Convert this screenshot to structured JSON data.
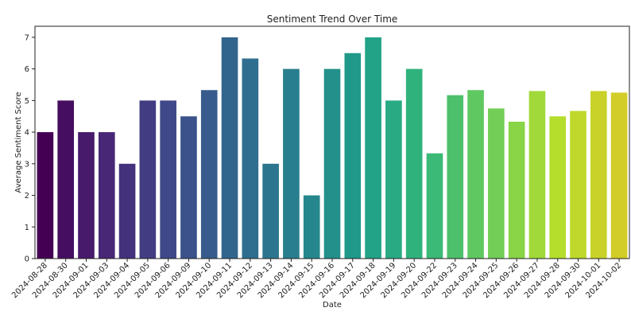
{
  "chart_data": {
    "type": "bar",
    "title": "Sentiment Trend Over Time",
    "xlabel": "Date",
    "ylabel": "Average Sentiment Score",
    "ylim": [
      0,
      7.35
    ],
    "yticks": [
      "0",
      "1",
      "2",
      "3",
      "4",
      "5",
      "6",
      "7"
    ],
    "grid": false,
    "palette": "viridis",
    "categories": [
      "2024-08-28",
      "2024-08-30",
      "2024-09-01",
      "2024-09-03",
      "2024-09-04",
      "2024-09-05",
      "2024-09-06",
      "2024-09-09",
      "2024-09-10",
      "2024-09-11",
      "2024-09-12",
      "2024-09-13",
      "2024-09-14",
      "2024-09-15",
      "2024-09-16",
      "2024-09-17",
      "2024-09-18",
      "2024-09-19",
      "2024-09-20",
      "2024-09-22",
      "2024-09-23",
      "2024-09-24",
      "2024-09-25",
      "2024-09-26",
      "2024-09-27",
      "2024-09-28",
      "2024-09-30",
      "2024-10-01",
      "2024-10-02"
    ],
    "values": [
      4,
      5,
      4,
      4,
      3,
      5,
      5,
      4.5,
      5.33,
      7,
      6.33,
      3,
      6,
      2,
      6,
      6.5,
      7,
      5,
      6,
      3.33,
      5.17,
      5.33,
      4.75,
      4.33,
      5.3,
      4.5,
      4.67,
      5.3,
      5.25
    ]
  }
}
